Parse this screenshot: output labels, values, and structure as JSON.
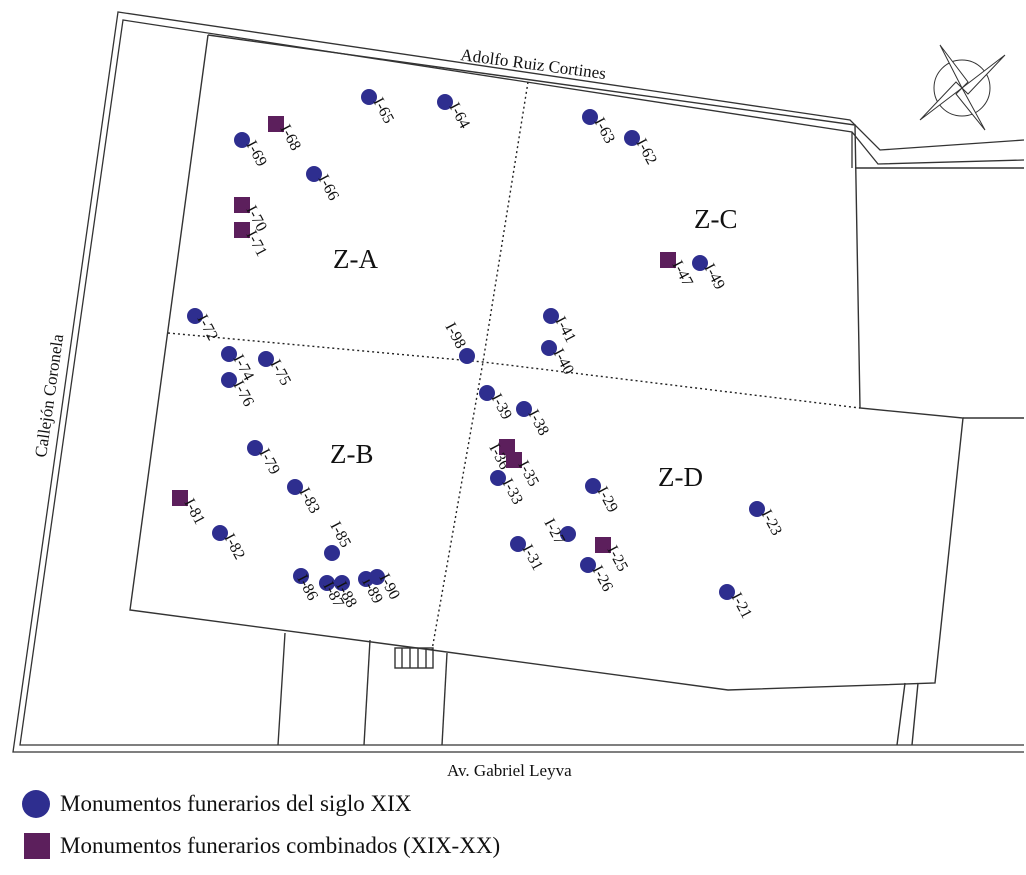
{
  "streets": {
    "north": "Adolfo Ruiz Cortines",
    "west": "Callejón Coronela",
    "south": "Av. Gabriel Leyva"
  },
  "zones": [
    "Z-A",
    "Z-B",
    "Z-C",
    "Z-D"
  ],
  "colors": {
    "century19": "#2e2e8f",
    "combined": "#5c1f5c"
  },
  "monuments": [
    {
      "id": "I-65",
      "type": "century19"
    },
    {
      "id": "I-64",
      "type": "century19"
    },
    {
      "id": "I-68",
      "type": "combined"
    },
    {
      "id": "I-69",
      "type": "century19"
    },
    {
      "id": "I-66",
      "type": "century19"
    },
    {
      "id": "I-70",
      "type": "combined"
    },
    {
      "id": "I-71",
      "type": "combined"
    },
    {
      "id": "I-63",
      "type": "century19"
    },
    {
      "id": "I-62",
      "type": "century19"
    },
    {
      "id": "I-47",
      "type": "combined"
    },
    {
      "id": "I-49",
      "type": "century19"
    },
    {
      "id": "I-41",
      "type": "century19"
    },
    {
      "id": "I-40",
      "type": "century19"
    },
    {
      "id": "I-98",
      "type": "century19"
    },
    {
      "id": "I-72",
      "type": "century19"
    },
    {
      "id": "I-74",
      "type": "century19"
    },
    {
      "id": "I-75",
      "type": "century19"
    },
    {
      "id": "I-76",
      "type": "century19"
    },
    {
      "id": "I-39",
      "type": "century19"
    },
    {
      "id": "I-38",
      "type": "century19"
    },
    {
      "id": "I-36",
      "type": "combined"
    },
    {
      "id": "I-35",
      "type": "combined"
    },
    {
      "id": "I-33",
      "type": "century19"
    },
    {
      "id": "I-79",
      "type": "century19"
    },
    {
      "id": "I-83",
      "type": "century19"
    },
    {
      "id": "I-81",
      "type": "combined"
    },
    {
      "id": "I-82",
      "type": "century19"
    },
    {
      "id": "I-85",
      "type": "century19"
    },
    {
      "id": "I-86",
      "type": "century19"
    },
    {
      "id": "I-87",
      "type": "century19"
    },
    {
      "id": "I-88",
      "type": "century19"
    },
    {
      "id": "I-89",
      "type": "century19"
    },
    {
      "id": "I-90",
      "type": "century19"
    },
    {
      "id": "I-29",
      "type": "century19"
    },
    {
      "id": "I-27",
      "type": "century19"
    },
    {
      "id": "I-25",
      "type": "combined"
    },
    {
      "id": "I-26",
      "type": "century19"
    },
    {
      "id": "I-31",
      "type": "century19"
    },
    {
      "id": "I-23",
      "type": "century19"
    },
    {
      "id": "I-21",
      "type": "century19"
    }
  ],
  "legend": [
    {
      "label": "Monumentos funerarios del siglo XIX",
      "symbol": "circle"
    },
    {
      "label": "Monumentos funerarios combinados (XIX-XX)",
      "symbol": "square"
    }
  ]
}
